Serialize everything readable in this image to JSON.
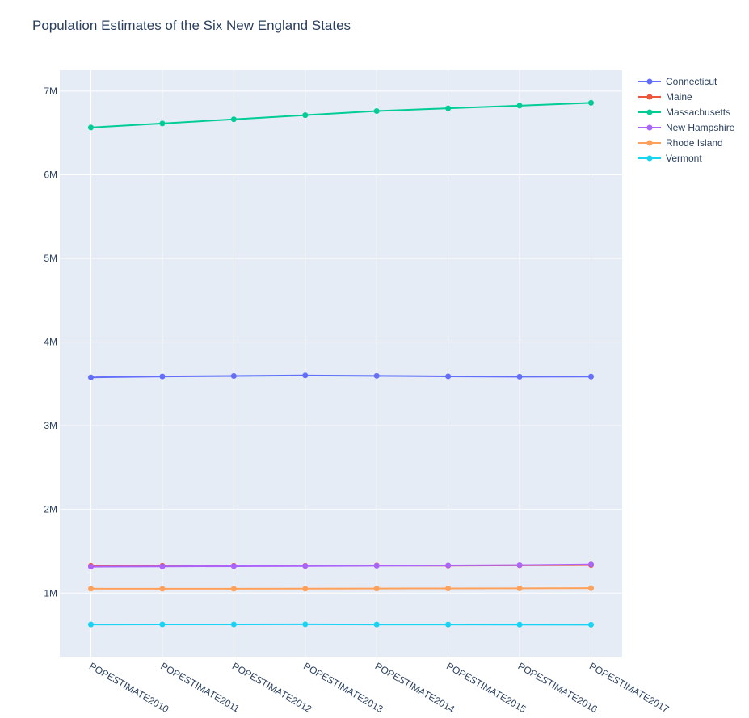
{
  "chart_data": {
    "type": "line",
    "title": "Population Estimates of the Six New England States",
    "xlabel": "",
    "ylabel": "",
    "categories": [
      "POPESTIMATE2010",
      "POPESTIMATE2011",
      "POPESTIMATE2012",
      "POPESTIMATE2013",
      "POPESTIMATE2014",
      "POPESTIMATE2015",
      "POPESTIMATE2016",
      "POPESTIMATE2017"
    ],
    "ylim": [
      240000,
      7250000
    ],
    "yticks": [
      1000000,
      2000000,
      3000000,
      4000000,
      5000000,
      6000000,
      7000000
    ],
    "ytick_labels": [
      "1M",
      "2M",
      "3M",
      "4M",
      "5M",
      "6M",
      "7M"
    ],
    "grid": true,
    "legend_position": "top-right",
    "plot_background": "#e5ecf6",
    "series": [
      {
        "name": "Connecticut",
        "color": "#636efa",
        "values": [
          3579000,
          3589000,
          3595000,
          3602000,
          3597000,
          3591000,
          3587000,
          3588000
        ]
      },
      {
        "name": "Maine",
        "color": "#ef553b",
        "values": [
          1327000,
          1328000,
          1328000,
          1328000,
          1331000,
          1329000,
          1332000,
          1336000
        ]
      },
      {
        "name": "Massachusetts",
        "color": "#00cc96",
        "values": [
          6566000,
          6614000,
          6664000,
          6713000,
          6762000,
          6795000,
          6826000,
          6860000
        ]
      },
      {
        "name": "New Hampshire",
        "color": "#ab63fa",
        "values": [
          1316000,
          1319000,
          1322000,
          1324000,
          1327000,
          1331000,
          1335000,
          1343000
        ]
      },
      {
        "name": "Rhode Island",
        "color": "#ffa15a",
        "values": [
          1053000,
          1052000,
          1052000,
          1053000,
          1055000,
          1056000,
          1057000,
          1059000
        ]
      },
      {
        "name": "Vermont",
        "color": "#19d3f3",
        "values": [
          625000,
          626000,
          626000,
          627000,
          625000,
          625000,
          624000,
          623000
        ]
      }
    ]
  }
}
